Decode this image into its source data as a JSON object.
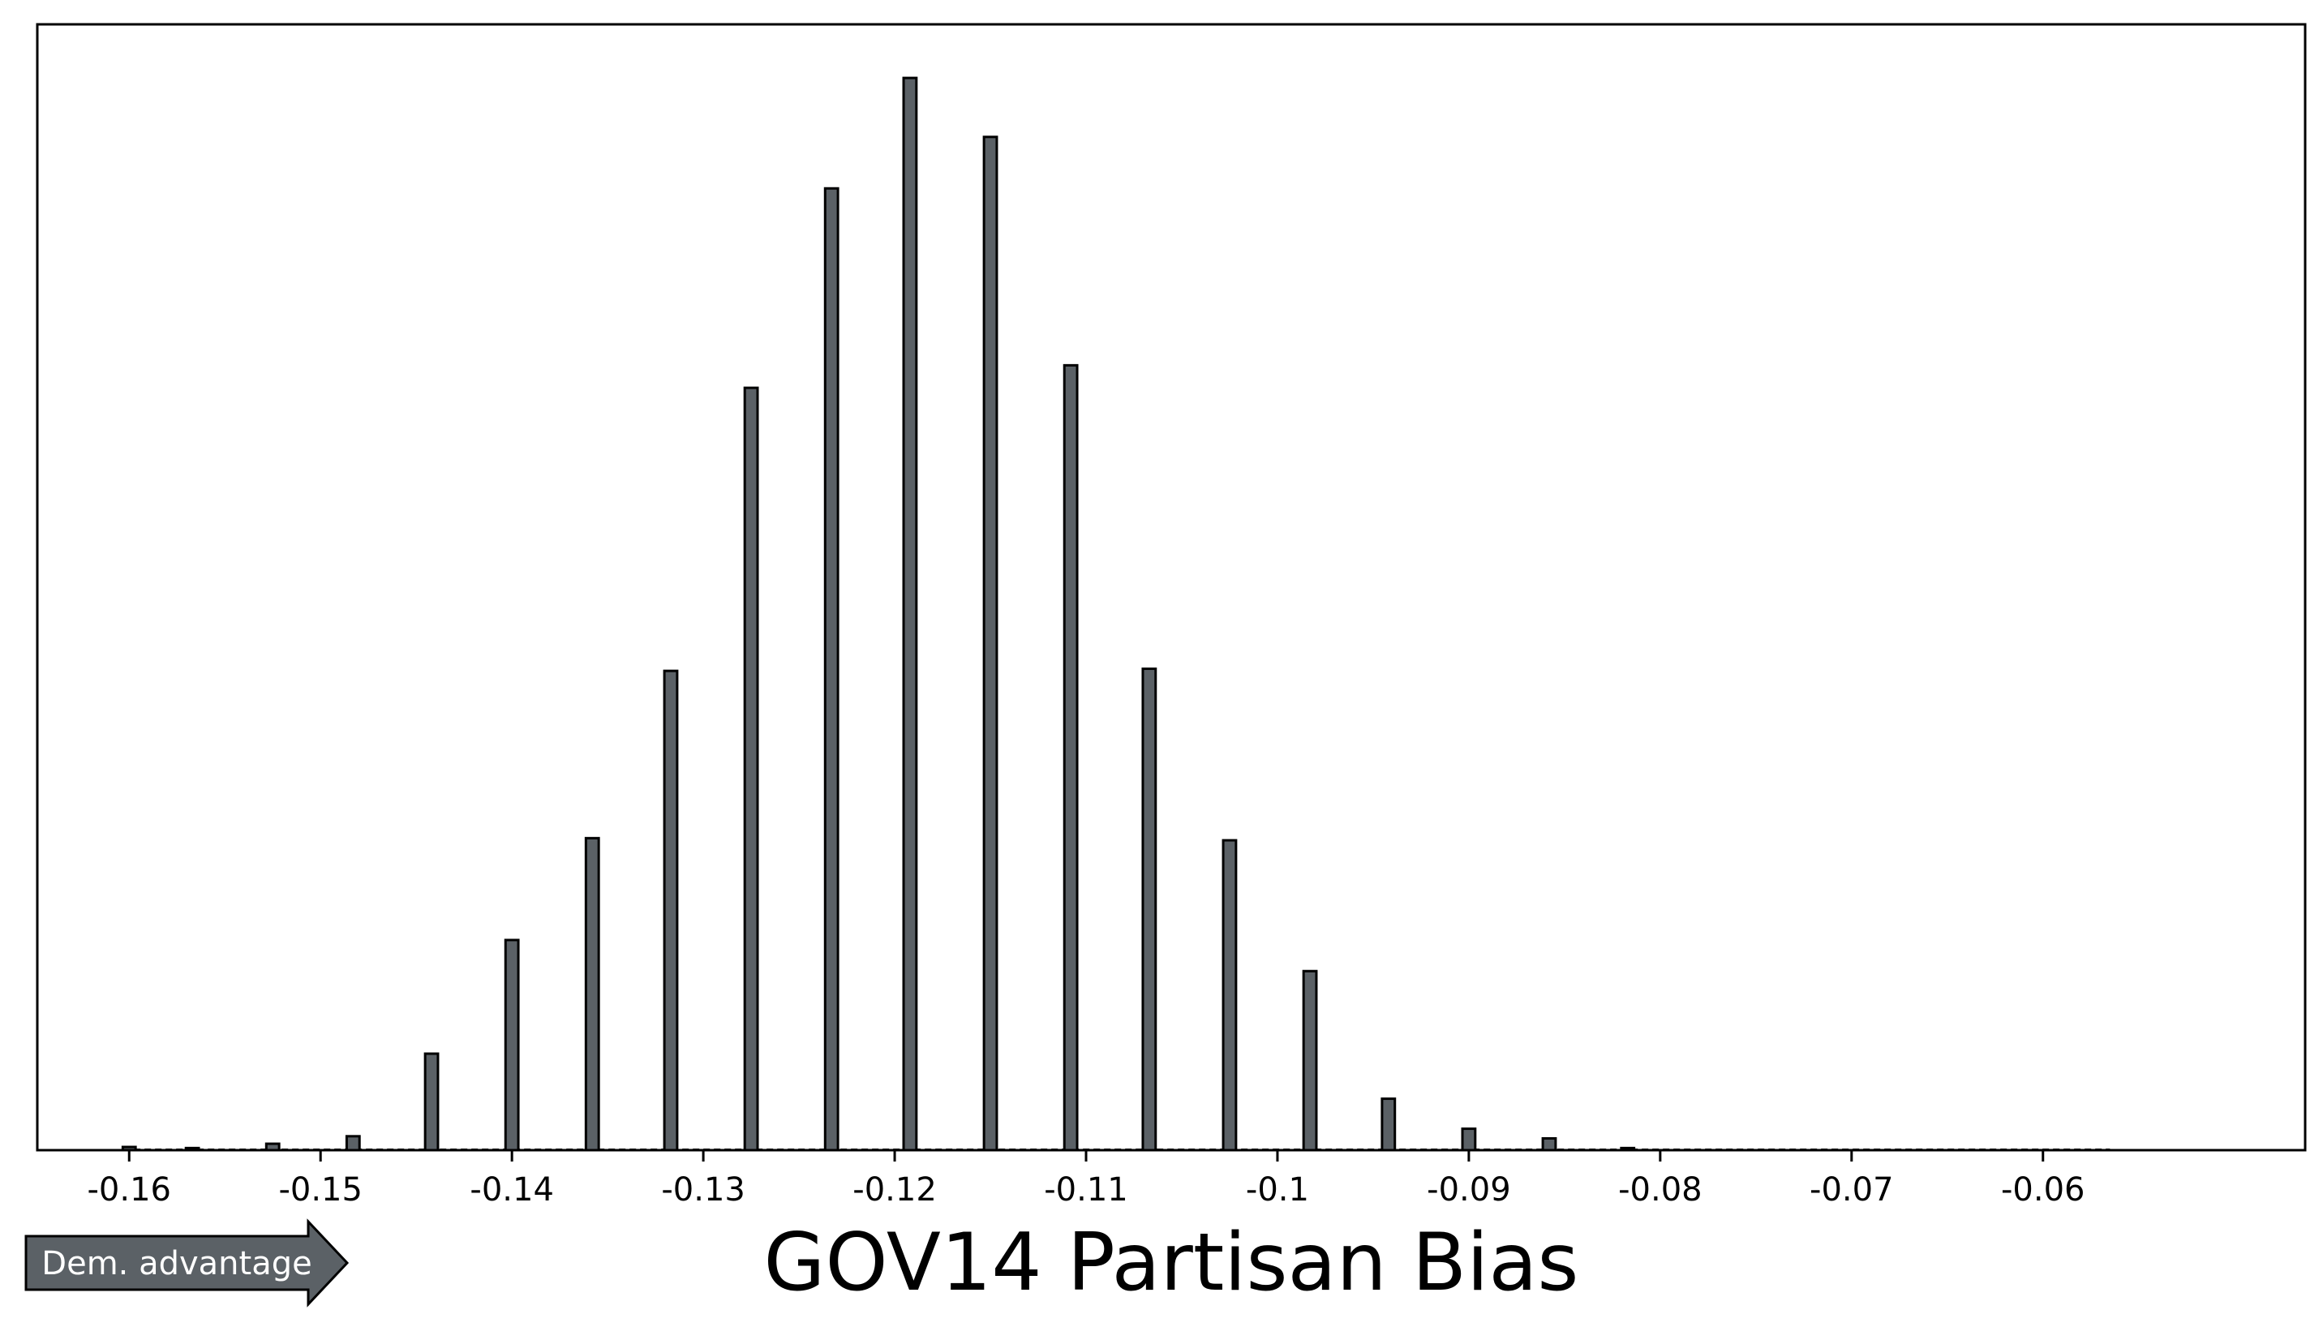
{
  "chart_data": {
    "type": "bar",
    "xlabel": "GOV14 Partisan Bias",
    "ylabel": "",
    "title": "",
    "xlim": [
      -0.1648,
      -0.0463
    ],
    "ylim": [
      0,
      1.05
    ],
    "xticks": [
      -0.16,
      -0.15,
      -0.14,
      -0.13,
      -0.12,
      -0.11,
      -0.1,
      -0.09,
      -0.08,
      -0.07,
      -0.06
    ],
    "xtick_labels": [
      "-0.16",
      "-0.15",
      "-0.14",
      "-0.13",
      "-0.12",
      "-0.11",
      "-0.1",
      "-0.09",
      "-0.08",
      "-0.07",
      "-0.06"
    ],
    "bar_width": 0.00067,
    "bars": [
      {
        "x": -0.16,
        "value": 0.003
      },
      {
        "x": -0.1567,
        "value": 0.002
      },
      {
        "x": -0.1525,
        "value": 0.006
      },
      {
        "x": -0.1483,
        "value": 0.013
      },
      {
        "x": -0.1442,
        "value": 0.09
      },
      {
        "x": -0.14,
        "value": 0.196
      },
      {
        "x": -0.1358,
        "value": 0.291
      },
      {
        "x": -0.1317,
        "value": 0.447
      },
      {
        "x": -0.1275,
        "value": 0.711
      },
      {
        "x": -0.1233,
        "value": 0.897
      },
      {
        "x": -0.1192,
        "value": 1.0
      },
      {
        "x": -0.115,
        "value": 0.945
      },
      {
        "x": -0.1108,
        "value": 0.732
      },
      {
        "x": -0.1067,
        "value": 0.449
      },
      {
        "x": -0.1025,
        "value": 0.289
      },
      {
        "x": -0.0983,
        "value": 0.167
      },
      {
        "x": -0.0942,
        "value": 0.048
      },
      {
        "x": -0.09,
        "value": 0.02
      },
      {
        "x": -0.0858,
        "value": 0.011
      },
      {
        "x": -0.0817,
        "value": 0.002
      }
    ],
    "bar_color": "#5b6166",
    "edge_color": "#000000",
    "grid": false,
    "annotation": {
      "text": "Dem. advantage",
      "shape": "right-arrow",
      "fill": "#5b6166",
      "text_color": "#ffffff"
    }
  }
}
